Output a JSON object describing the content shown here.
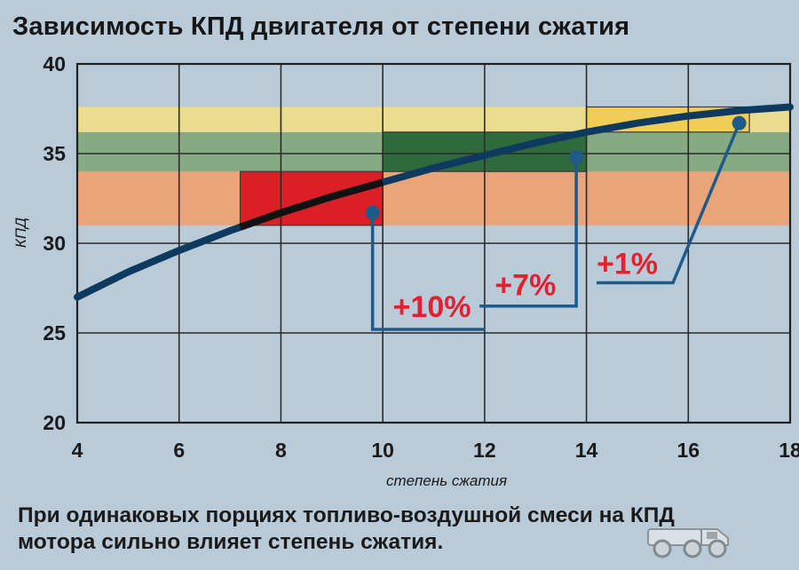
{
  "chart_data": {
    "type": "line",
    "title": "Зависимость КПД двигателя от степени сжатия",
    "xlabel": "степень сжатия",
    "ylabel": "КПД",
    "xlim": [
      4,
      18
    ],
    "ylim": [
      20,
      40
    ],
    "x_ticks": [
      4,
      6,
      8,
      10,
      12,
      14,
      16,
      18
    ],
    "y_ticks": [
      20,
      25,
      30,
      35,
      40
    ],
    "grid": true,
    "series": [
      {
        "x": [
          4,
          5,
          6,
          7,
          8,
          9,
          10,
          11,
          12,
          13,
          14,
          15,
          16,
          17,
          18
        ],
        "y": [
          27.0,
          28.4,
          29.6,
          30.7,
          31.7,
          32.6,
          33.4,
          34.2,
          34.9,
          35.6,
          36.2,
          36.7,
          37.1,
          37.4,
          37.6
        ]
      }
    ],
    "bands": [
      {
        "y": [
          31,
          34
        ],
        "color": "#eaa47a"
      },
      {
        "y": [
          34,
          36.2
        ],
        "color": "#86ab82"
      },
      {
        "y": [
          36.2,
          37.6
        ],
        "color": "#ecdd8e"
      }
    ],
    "regions": [
      {
        "x": [
          7.2,
          10
        ],
        "y": [
          31,
          34
        ],
        "color": "#dc1f26"
      },
      {
        "x": [
          10,
          14
        ],
        "y": [
          34,
          36.2
        ],
        "color": "#2e6a3b"
      },
      {
        "x": [
          14,
          17.2
        ],
        "y": [
          36.2,
          37.6
        ],
        "color": "#f1cd55"
      }
    ],
    "annotations": [
      {
        "text": "+10%",
        "point": [
          9.8,
          31.7
        ]
      },
      {
        "text": "+7%",
        "point": [
          13.8,
          34.8
        ]
      },
      {
        "text": "+1%",
        "point": [
          17.0,
          36.7
        ]
      }
    ],
    "colors": {
      "curve": "#0d3a5e",
      "curve_highlight": "#111111",
      "annotation_text": "#e2202f",
      "leader": "#1e5a8a"
    }
  },
  "caption": {
    "line1": "При одинаковых порциях топливо-воздушной смеси на КПД",
    "line2": "мотора сильно влияет степень сжатия."
  },
  "watermark": {
    "icon": "truck-logo-icon"
  }
}
